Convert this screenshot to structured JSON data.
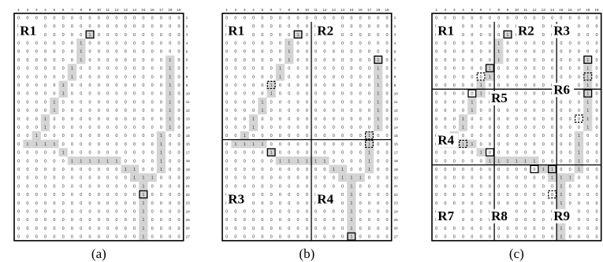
{
  "grid": {
    "columns": [
      "1",
      "2",
      "3",
      "4",
      "5",
      "6",
      "7",
      "8",
      "9",
      "10",
      "11",
      "12",
      "13",
      "14",
      "15",
      "16",
      "17",
      "18",
      "19"
    ],
    "rows": [
      "1",
      "2",
      "3",
      "4",
      "5",
      "6",
      "7",
      "8",
      "9",
      "10",
      "11",
      "12",
      "13",
      "14",
      "15",
      "16",
      "17",
      "18",
      "19",
      "20",
      "21",
      "22",
      "23",
      "24",
      "25",
      "26",
      "27"
    ],
    "default_symbol": "0",
    "path_symbol": "1"
  },
  "path_cells": [
    [
      8,
      2
    ],
    [
      17,
      5
    ],
    [
      17,
      6
    ],
    [
      17,
      7
    ],
    [
      17,
      8
    ],
    [
      17,
      9
    ],
    [
      17,
      10
    ],
    [
      17,
      11
    ],
    [
      17,
      12
    ],
    [
      17,
      13
    ],
    [
      7,
      3
    ],
    [
      7,
      4
    ],
    [
      7,
      5
    ],
    [
      6,
      6
    ],
    [
      6,
      7
    ],
    [
      5,
      8
    ],
    [
      5,
      9
    ],
    [
      4,
      10
    ],
    [
      4,
      11
    ],
    [
      3,
      12
    ],
    [
      3,
      13
    ],
    [
      2,
      14
    ],
    [
      2,
      15
    ],
    [
      1,
      15
    ],
    [
      3,
      15
    ],
    [
      4,
      15
    ],
    [
      5,
      16
    ],
    [
      6,
      17
    ],
    [
      7,
      17
    ],
    [
      8,
      17
    ],
    [
      9,
      17
    ],
    [
      10,
      17
    ],
    [
      11,
      17
    ],
    [
      12,
      18
    ],
    [
      13,
      18
    ],
    [
      16,
      14
    ],
    [
      16,
      15
    ],
    [
      16,
      16
    ],
    [
      16,
      17
    ],
    [
      16,
      18
    ],
    [
      13,
      19
    ],
    [
      14,
      19
    ],
    [
      15,
      19
    ],
    [
      14,
      20
    ],
    [
      14,
      21
    ],
    [
      14,
      22
    ],
    [
      14,
      23
    ],
    [
      14,
      24
    ],
    [
      14,
      25
    ],
    [
      14,
      26
    ]
  ],
  "colors": {
    "path_fill": "#d4d4d4",
    "grid_symbol": "#333333",
    "frame": "#000000",
    "background": "#ffffff"
  },
  "panels": [
    {
      "caption": "(a)",
      "regions": [
        {
          "label": "R1",
          "col": 1,
          "row": 2
        }
      ],
      "dividers": [],
      "markers": [
        {
          "col": 8,
          "row": 2,
          "style": "solid"
        },
        {
          "col": 14,
          "row": 21,
          "style": "solid"
        }
      ]
    },
    {
      "caption": "(b)",
      "regions": [
        {
          "label": "R1",
          "col": 1,
          "row": 2
        },
        {
          "label": "R2",
          "col": 11,
          "row": 2
        },
        {
          "label": "R3",
          "col": 1,
          "row": 22
        },
        {
          "label": "R4",
          "col": 11,
          "row": 22
        }
      ],
      "dividers": [
        {
          "orientation": "v",
          "at": 10,
          "from": 1,
          "to": 27
        },
        {
          "orientation": "h",
          "at": 15,
          "from": 0,
          "to": 19
        }
      ],
      "markers": [
        {
          "col": 8,
          "row": 2,
          "style": "solid"
        },
        {
          "col": 17,
          "row": 5,
          "style": "solid"
        },
        {
          "col": 5,
          "row": 8,
          "style": "dashed"
        },
        {
          "col": 16,
          "row": 14,
          "style": "dashed"
        },
        {
          "col": 16,
          "row": 15,
          "style": "dashed"
        },
        {
          "col": 5,
          "row": 16,
          "style": "solid"
        },
        {
          "col": 14,
          "row": 26,
          "style": "solid"
        }
      ]
    },
    {
      "caption": "(c)",
      "regions": [
        {
          "label": "R1",
          "col": 1,
          "row": 2
        },
        {
          "label": "R2",
          "col": 10,
          "row": 2
        },
        {
          "label": "R3",
          "col": 14,
          "row": 2
        },
        {
          "label": "R4",
          "col": 1,
          "row": 15
        },
        {
          "label": "R5",
          "col": 7,
          "row": 10
        },
        {
          "label": "R6",
          "col": 14,
          "row": 9
        },
        {
          "label": "R7",
          "col": 1,
          "row": 24
        },
        {
          "label": "R8",
          "col": 7,
          "row": 24
        },
        {
          "label": "R9",
          "col": 14,
          "row": 24
        }
      ],
      "dividers": [
        {
          "orientation": "v",
          "at": 7,
          "from": 1,
          "to": 27
        },
        {
          "orientation": "v",
          "at": 14,
          "from": 1,
          "to": 27
        },
        {
          "orientation": "h",
          "at": 9,
          "from": 0,
          "to": 19
        },
        {
          "orientation": "h",
          "at": 18,
          "from": 0,
          "to": 19
        }
      ],
      "markers": [
        {
          "col": 8,
          "row": 2,
          "style": "solid"
        },
        {
          "col": 17,
          "row": 5,
          "style": "solid"
        },
        {
          "col": 6,
          "row": 6,
          "style": "solid"
        },
        {
          "col": 5,
          "row": 7,
          "style": "dashed"
        },
        {
          "col": 17,
          "row": 7,
          "style": "dashed"
        },
        {
          "col": 4,
          "row": 9,
          "style": "solid"
        },
        {
          "col": 17,
          "row": 9,
          "style": "solid"
        },
        {
          "col": 16,
          "row": 12,
          "style": "dashed"
        },
        {
          "col": 3,
          "row": 15,
          "style": "dashed"
        },
        {
          "col": 6,
          "row": 16,
          "style": "solid"
        },
        {
          "col": 11,
          "row": 18,
          "style": "solid"
        },
        {
          "col": 13,
          "row": 18,
          "style": "solid"
        },
        {
          "col": 13,
          "row": 21,
          "style": "dashed"
        }
      ]
    }
  ]
}
